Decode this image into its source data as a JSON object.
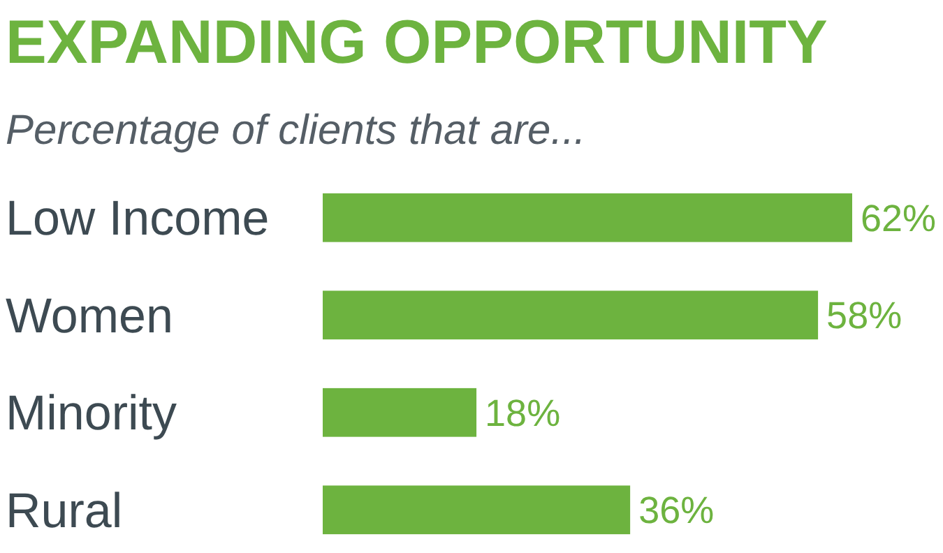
{
  "chart_data": {
    "type": "bar",
    "orientation": "horizontal",
    "title": "EXPANDING OPPORTUNITY",
    "subtitle": "Percentage of clients that are...",
    "categories": [
      "Low Income",
      "Women",
      "Minority",
      "Rural"
    ],
    "values": [
      62,
      58,
      18,
      36
    ],
    "value_labels": [
      "62%",
      "58%",
      "18%",
      "36%"
    ],
    "color": "#6db33f"
  }
}
